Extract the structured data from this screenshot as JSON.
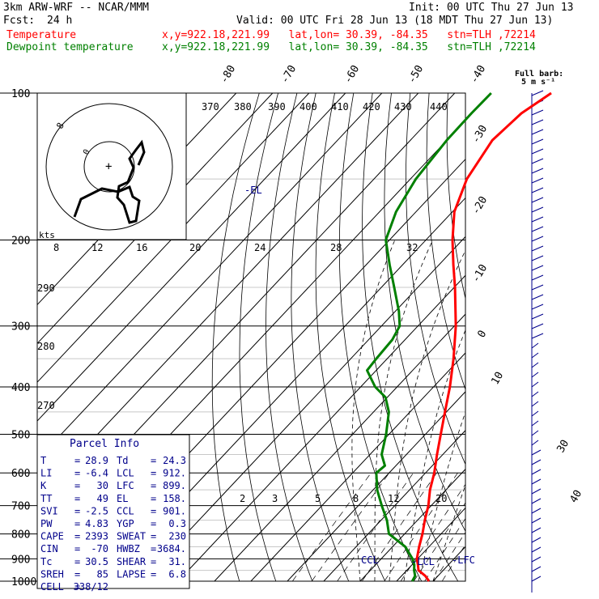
{
  "header": {
    "model": "3km ARW-WRF -- NCAR/MMM",
    "init": "Init: 00 UTC Thu 27 Jun 13",
    "fcst_label": "Fcst:",
    "fcst_value": "24 h",
    "valid": "Valid: 00 UTC Fri 28 Jun 13 (18 MDT Thu 27 Jun 13)",
    "temp_label": "Temperature",
    "temp_loc": "x,y=922.18,221.99   lat,lon= 30.39, -84.35   stn=TLH ,72214",
    "dew_label": "Dewpoint temperature",
    "dew_loc": "x,y=922.18,221.99   lat,lon= 30.39, -84.35   stn=TLH ,72214"
  },
  "colors": {
    "temperature": "#ff0000",
    "dewpoint": "#008000",
    "annotation": "#00008b"
  },
  "wind_key": {
    "line1": "Full barb:",
    "line2": "5 m s⁻¹"
  },
  "hodograph": {
    "units_label": "kts",
    "rings": [
      "0",
      "8"
    ]
  },
  "sounding": {
    "pressure_ticks": [
      "100",
      "200",
      "300",
      "400",
      "500",
      "600",
      "700",
      "800",
      "900",
      "1000"
    ],
    "theta_labels": [
      "370",
      "380",
      "390",
      "400",
      "410",
      "420",
      "430",
      "440"
    ],
    "theta_left_labels": [
      "290",
      "280",
      "270"
    ],
    "mixing_ratio_top": [
      "8",
      "12",
      "16",
      "20",
      "24",
      "28",
      "32"
    ],
    "mixing_ratio_bottom": [
      "2",
      "3",
      "5",
      "8",
      "12",
      "20"
    ],
    "temp_labels": [
      "-80",
      "-70",
      "-60",
      "-50",
      "-40",
      "-30",
      "-20",
      "-10",
      "0",
      "10",
      "30",
      "40"
    ],
    "el_label": "-EL",
    "ccl_label": "CCL",
    "lcl_label": "-LCL",
    "lfc_label": "-LFC",
    "temperature": [
      [
        1000,
        28.9
      ],
      [
        975,
        26.5
      ],
      [
        950,
        23.2
      ],
      [
        925,
        21.6
      ],
      [
        900,
        19.8
      ],
      [
        850,
        17.3
      ],
      [
        800,
        14.9
      ],
      [
        750,
        12.0
      ],
      [
        700,
        9.2
      ],
      [
        650,
        5.6
      ],
      [
        600,
        2.4
      ],
      [
        550,
        -1.6
      ],
      [
        500,
        -5.8
      ],
      [
        450,
        -10.4
      ],
      [
        400,
        -15.5
      ],
      [
        350,
        -21.8
      ],
      [
        300,
        -29.6
      ],
      [
        250,
        -39.8
      ],
      [
        225,
        -46.0
      ],
      [
        200,
        -52.7
      ],
      [
        175,
        -59.5
      ],
      [
        150,
        -64.5
      ],
      [
        125,
        -67.5
      ],
      [
        110,
        -66.5
      ],
      [
        100,
        -63.5
      ]
    ],
    "dewpoint": [
      [
        1000,
        24.3
      ],
      [
        975,
        23.7
      ],
      [
        950,
        22.0
      ],
      [
        925,
        20.6
      ],
      [
        900,
        18.6
      ],
      [
        850,
        13.5
      ],
      [
        800,
        5.7
      ],
      [
        750,
        1.6
      ],
      [
        700,
        -3.6
      ],
      [
        650,
        -8.9
      ],
      [
        600,
        -13.5
      ],
      [
        580,
        -13.0
      ],
      [
        550,
        -16.8
      ],
      [
        500,
        -20.8
      ],
      [
        450,
        -25.8
      ],
      [
        420,
        -30.5
      ],
      [
        400,
        -36.0
      ],
      [
        370,
        -42.5
      ],
      [
        350,
        -43.0
      ],
      [
        320,
        -43.5
      ],
      [
        300,
        -45.0
      ],
      [
        280,
        -49.0
      ],
      [
        250,
        -56.5
      ],
      [
        225,
        -63.5
      ],
      [
        200,
        -71.0
      ],
      [
        175,
        -75.5
      ],
      [
        150,
        -78.5
      ],
      [
        125,
        -80.0
      ],
      [
        110,
        -80.2
      ],
      [
        100,
        -80.0
      ]
    ]
  },
  "parcel_info": {
    "title": "Parcel Info",
    "rows": [
      [
        "T",
        "28.9",
        "Td",
        "24.3"
      ],
      [
        "LI",
        "-6.4",
        "LCL",
        "912."
      ],
      [
        "K",
        "30",
        "LFC",
        "899."
      ],
      [
        "TT",
        "49",
        "EL",
        "158."
      ],
      [
        "SVI",
        "-2.5",
        "CCL",
        "901."
      ],
      [
        "PW",
        "4.83",
        "YGP",
        "0.3"
      ],
      [
        "CAPE",
        "2393",
        "SWEAT",
        "230"
      ],
      [
        "CIN",
        "-70",
        "HWBZ",
        "3684."
      ],
      [
        "Tc",
        "30.5",
        "SHEAR",
        "31."
      ],
      [
        "SREH",
        "85",
        "LAPSE",
        "6.8"
      ],
      [
        "CELL",
        "338/12",
        "",
        ""
      ]
    ]
  }
}
